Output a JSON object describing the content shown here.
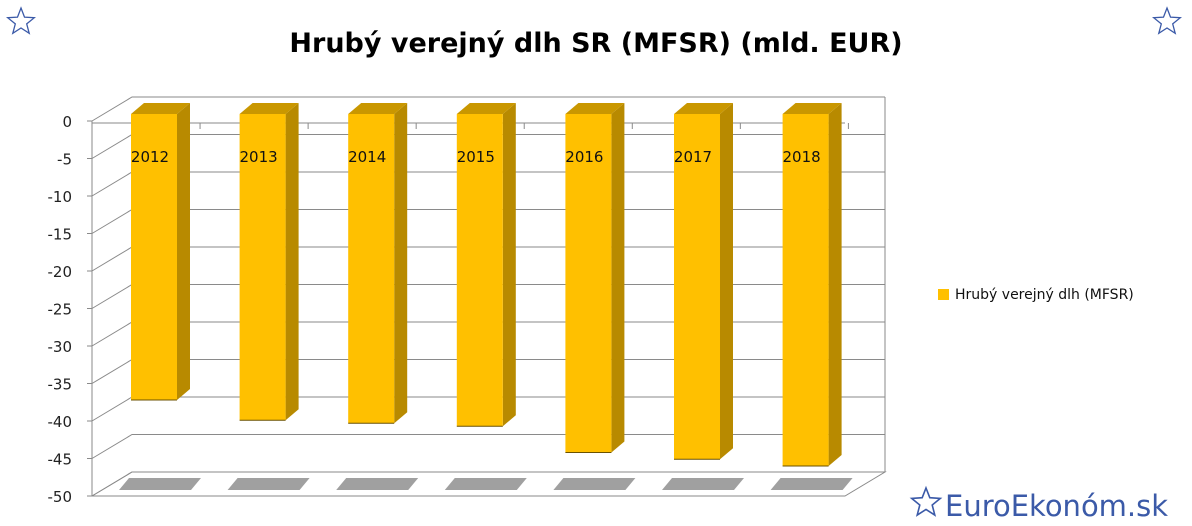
{
  "chart_data": {
    "type": "bar",
    "title": "Hrubý verejný dlh SR (MFSR) (mld. EUR)",
    "categories": [
      "2012",
      "2013",
      "2014",
      "2015",
      "2016",
      "2017",
      "2018"
    ],
    "series": [
      {
        "name": "Hrubý verejný dlh (MFSR)",
        "values": [
          -37.2,
          -39.9,
          -40.3,
          -40.7,
          -44.2,
          -45.1,
          -46.0
        ]
      }
    ],
    "yticks": [
      "0",
      "-5",
      "-10",
      "-15",
      "-20",
      "-25",
      "-30",
      "-35",
      "-40",
      "-45",
      "-50"
    ],
    "ylim": [
      -50,
      0
    ],
    "grid": true,
    "legend_position": "right",
    "colors": {
      "bar_front": "#ffc000",
      "bar_side": "#b88a00",
      "bar_top": "#c99700",
      "grid": "#8a8a8a",
      "brand": "#3b5aa8"
    }
  },
  "brand": {
    "text": "EuroEkonóm.sk",
    "star_icon": "star-outline-icon"
  }
}
